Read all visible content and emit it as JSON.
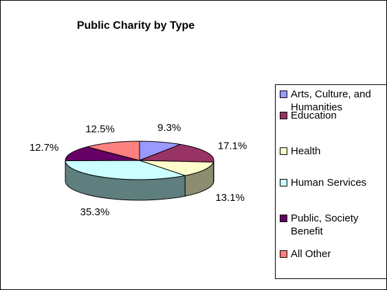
{
  "chart_data": {
    "type": "pie",
    "title": "Public Charity by Type",
    "categories": [
      "Arts, Culture, and Humanities",
      "Education",
      "Health",
      "Human Services",
      "Public, Society Benefit",
      "All Other"
    ],
    "values": [
      9.3,
      17.1,
      13.1,
      35.3,
      12.7,
      12.5
    ],
    "value_labels": [
      "9.3%",
      "17.1%",
      "13.1%",
      "35.3%",
      "12.7%",
      "12.5%"
    ],
    "colors": [
      "#9999ff",
      "#993366",
      "#ffffcc",
      "#ccffff",
      "#660066",
      "#ff8080"
    ],
    "side_color": "#5f7f7f",
    "legend_position": "right",
    "style": "3d-pie"
  }
}
